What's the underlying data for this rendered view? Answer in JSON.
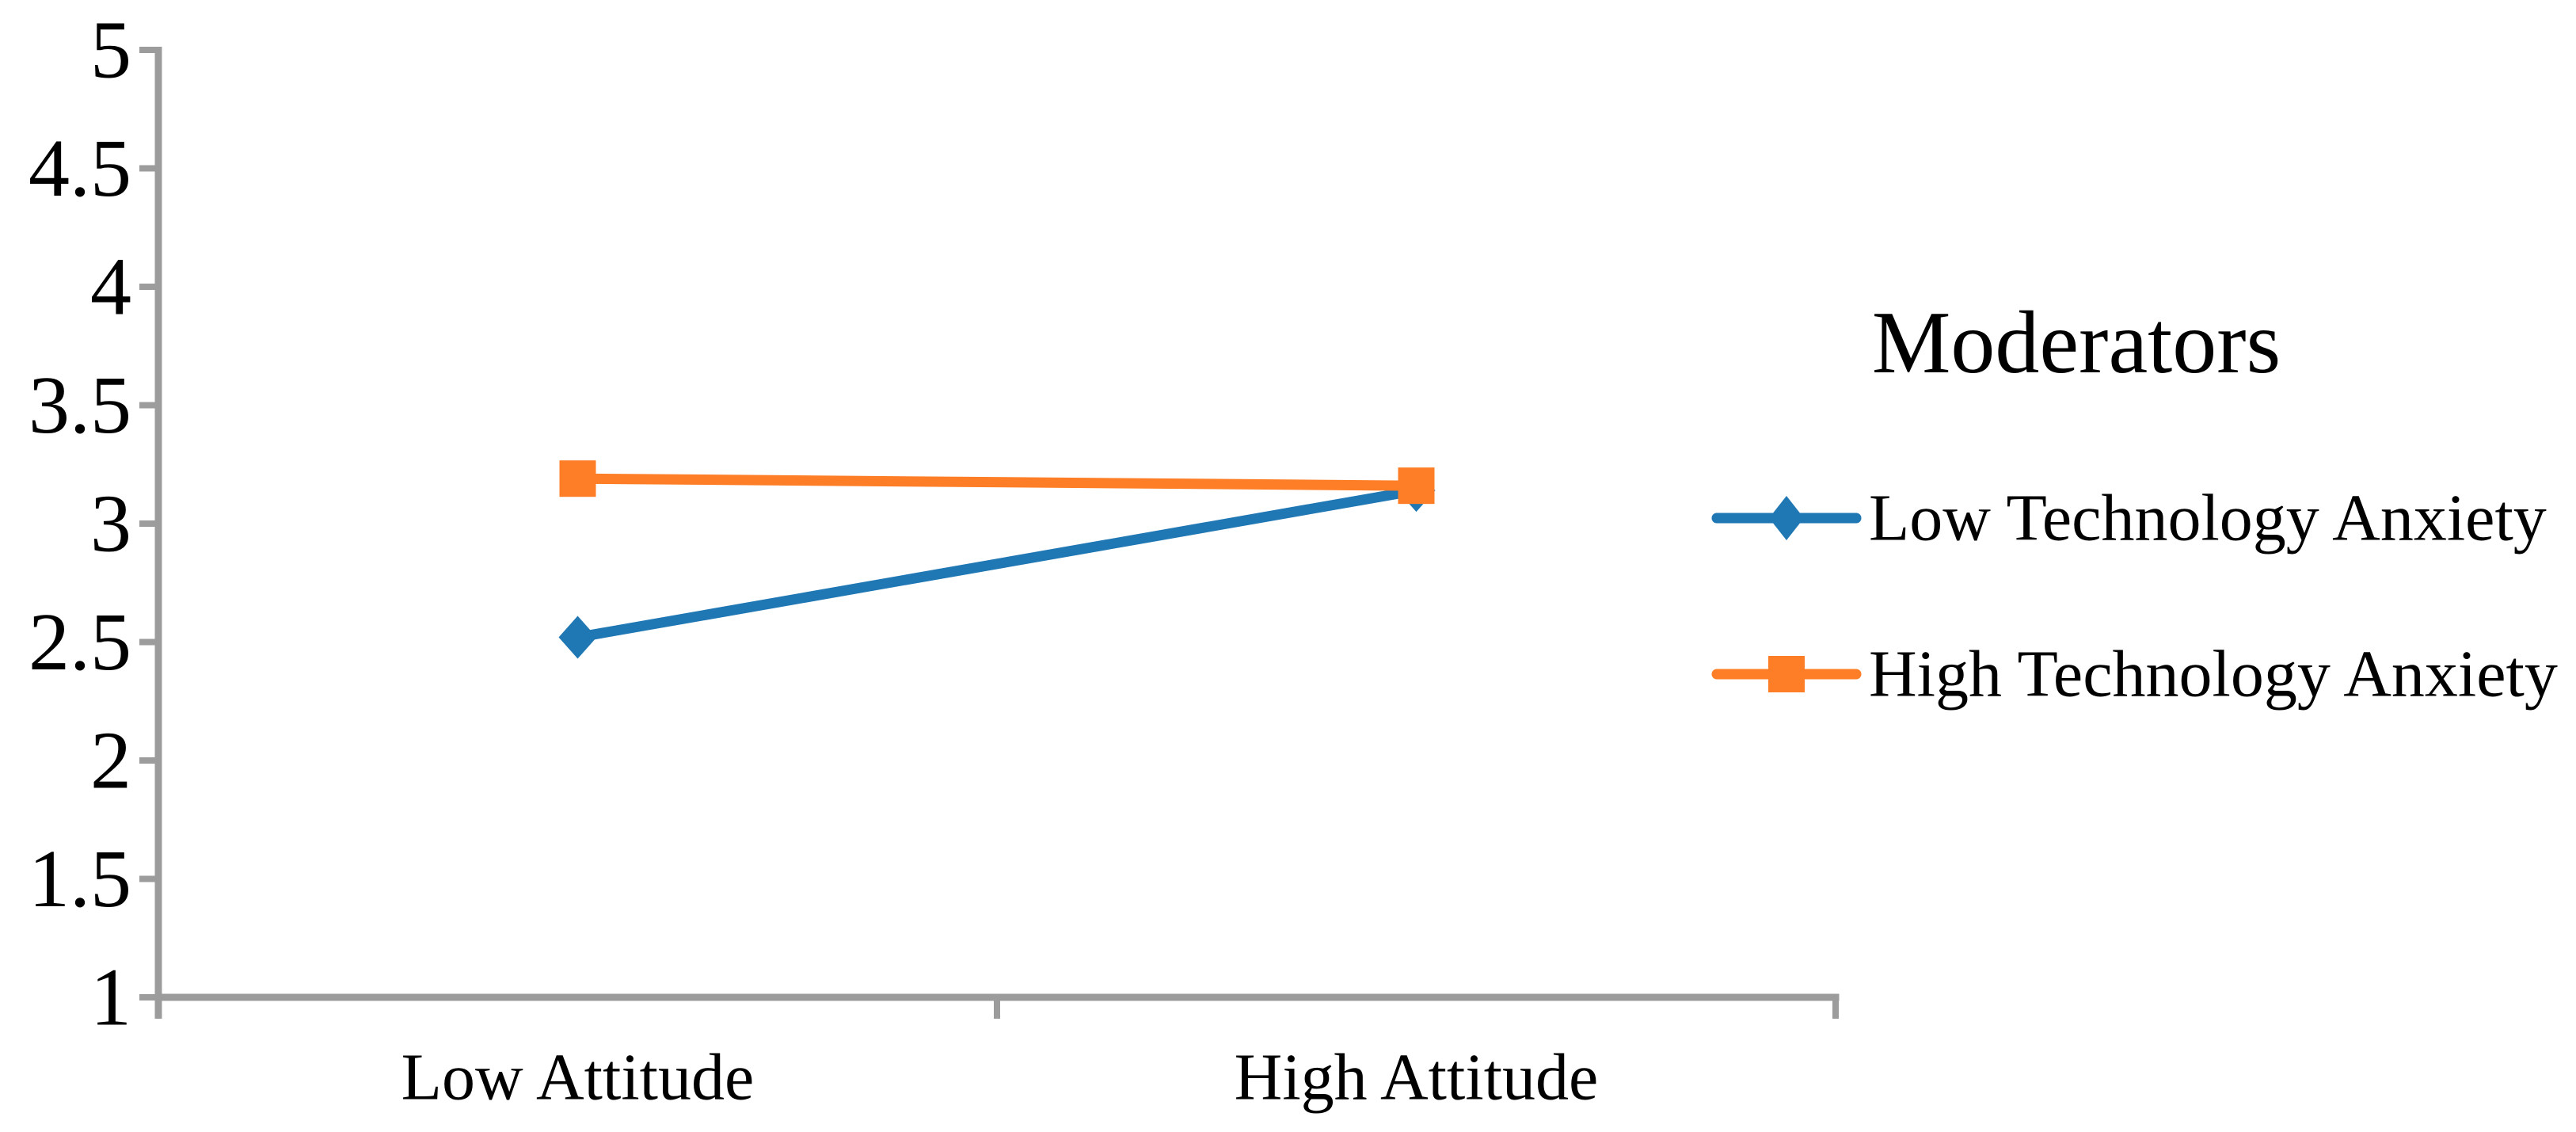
{
  "chart_data": {
    "type": "line",
    "title": "",
    "legend_title": "Moderators",
    "categories": [
      "Low Attitude",
      "High Attitude"
    ],
    "series": [
      {
        "name": "Low Technology Anxiety",
        "values": [
          2.52,
          3.14
        ],
        "color": "#1f77b4",
        "marker": "diamond"
      },
      {
        "name": "High Technology Anxiety",
        "values": [
          3.19,
          3.16
        ],
        "color": "#fd7e26",
        "marker": "square"
      }
    ],
    "ylim": [
      1,
      5
    ],
    "yticks": [
      1,
      1.5,
      2,
      2.5,
      3,
      3.5,
      4,
      4.5,
      5
    ],
    "ytick_labels": [
      "1",
      "1.5",
      "2",
      "2.5",
      "3",
      "3.5",
      "4",
      "4.5",
      "5"
    ],
    "xlabel": "",
    "ylabel": "",
    "grid": false,
    "legend_position": "right",
    "axis_color": "#9c9c9c",
    "text_color": "#000000",
    "background": "#ffffff"
  }
}
